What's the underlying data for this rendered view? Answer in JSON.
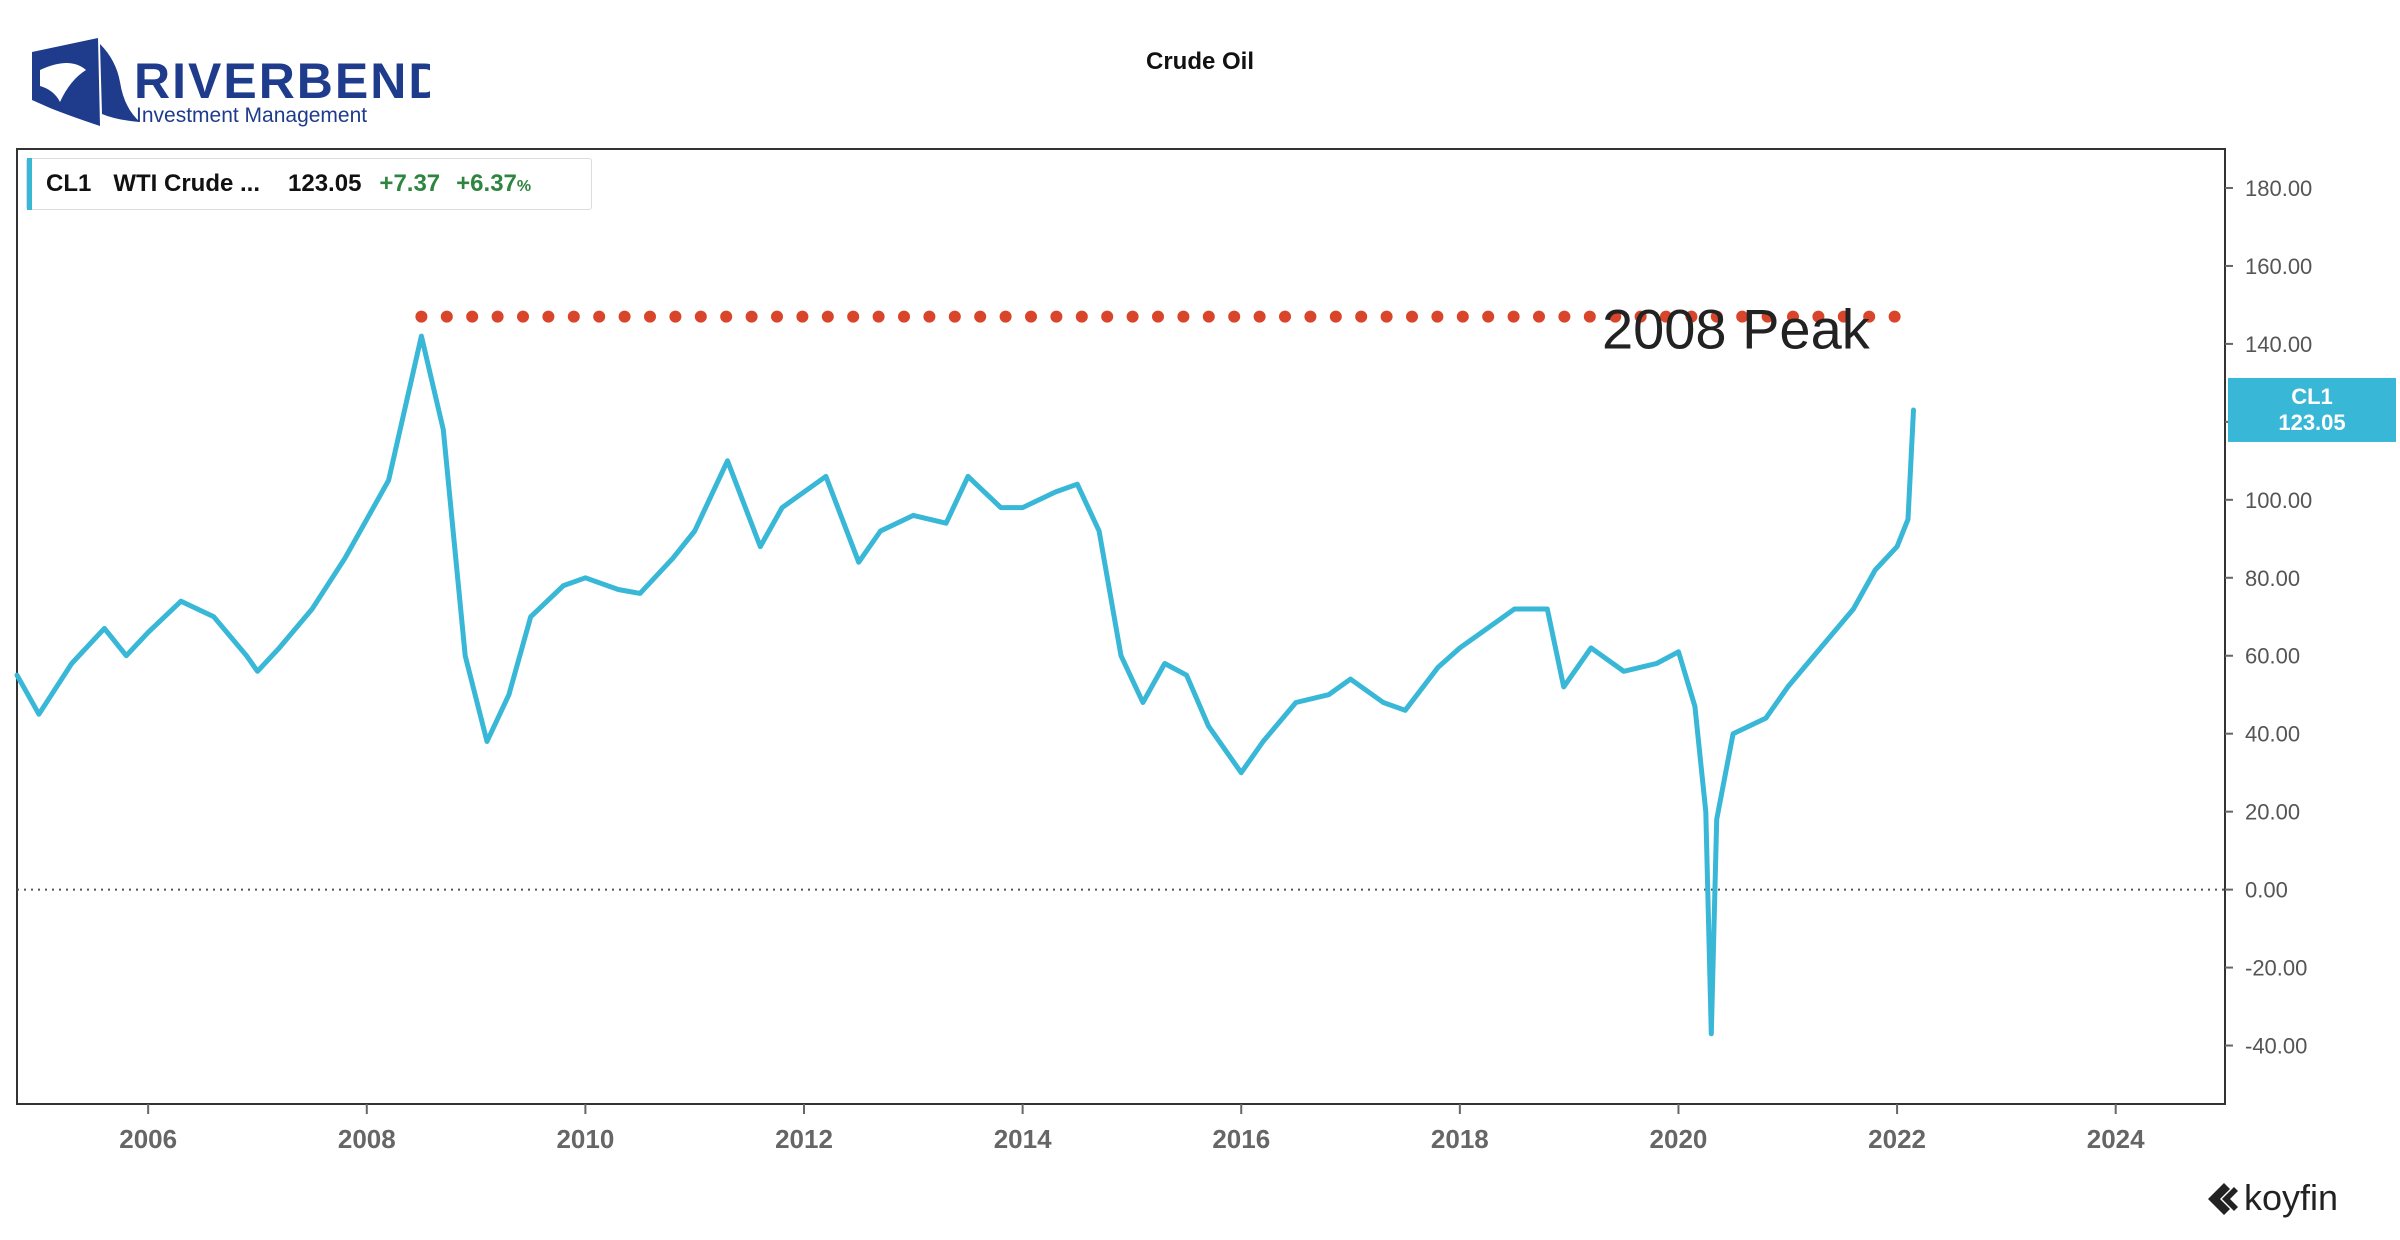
{
  "header": {
    "logo_name": "RIVERBEND",
    "logo_tagline": "Investment Management",
    "chart_title": "Crude Oil",
    "brand_watermark": "koyfin"
  },
  "legend": {
    "symbol": "CL1",
    "name": "WTI Crude ...",
    "last": "123.05",
    "change": "+7.37",
    "change_pct": "+6.37",
    "pct_unit": "%"
  },
  "colors": {
    "series": "#38b7d7",
    "peak_line": "#d9452a",
    "positive": "#2e8540"
  },
  "chart_data": {
    "type": "line",
    "title": "Crude Oil",
    "xlabel": "",
    "ylabel": "",
    "xlim": [
      2004.8,
      2025.0
    ],
    "ylim": [
      -55,
      190
    ],
    "x_ticks": [
      "2006",
      "2008",
      "2010",
      "2012",
      "2014",
      "2016",
      "2018",
      "2020",
      "2022",
      "2024"
    ],
    "y_ticks": [
      "180.00",
      "160.00",
      "140.00",
      "120.00",
      "100.00",
      "80.00",
      "60.00",
      "40.00",
      "20.00",
      "0.00",
      "-20.00",
      "-40.00"
    ],
    "price_tag": {
      "label": "CL1",
      "value": "123.05"
    },
    "annotation": {
      "text": "2008 Peak",
      "y": 147,
      "x_start": 2008.5,
      "x_end": 2022.0
    },
    "zero_line": 0,
    "grid": false,
    "series": [
      {
        "name": "CL1",
        "x": [
          2004.8,
          2005.0,
          2005.3,
          2005.6,
          2005.8,
          2006.0,
          2006.3,
          2006.6,
          2006.9,
          2007.0,
          2007.2,
          2007.5,
          2007.8,
          2008.0,
          2008.2,
          2008.5,
          2008.7,
          2008.9,
          2009.1,
          2009.3,
          2009.5,
          2009.8,
          2010.0,
          2010.3,
          2010.5,
          2010.8,
          2011.0,
          2011.3,
          2011.6,
          2011.8,
          2012.0,
          2012.2,
          2012.5,
          2012.7,
          2013.0,
          2013.3,
          2013.5,
          2013.8,
          2014.0,
          2014.3,
          2014.5,
          2014.7,
          2014.9,
          2015.1,
          2015.3,
          2015.5,
          2015.7,
          2016.0,
          2016.2,
          2016.5,
          2016.8,
          2017.0,
          2017.3,
          2017.5,
          2017.8,
          2018.0,
          2018.3,
          2018.5,
          2018.8,
          2018.95,
          2019.2,
          2019.5,
          2019.8,
          2020.0,
          2020.15,
          2020.25,
          2020.3,
          2020.35,
          2020.5,
          2020.8,
          2021.0,
          2021.3,
          2021.6,
          2021.8,
          2022.0,
          2022.1,
          2022.15
        ],
        "values": [
          55,
          45,
          58,
          67,
          60,
          66,
          74,
          70,
          60,
          56,
          62,
          72,
          85,
          95,
          105,
          142,
          118,
          60,
          38,
          50,
          70,
          78,
          80,
          77,
          76,
          85,
          92,
          110,
          88,
          98,
          102,
          106,
          84,
          92,
          96,
          94,
          106,
          98,
          98,
          102,
          104,
          92,
          60,
          48,
          58,
          55,
          42,
          30,
          38,
          48,
          50,
          54,
          48,
          46,
          57,
          62,
          68,
          72,
          72,
          52,
          62,
          56,
          58,
          61,
          47,
          20,
          -37,
          18,
          40,
          44,
          52,
          62,
          72,
          82,
          88,
          95,
          123.05
        ]
      }
    ]
  }
}
